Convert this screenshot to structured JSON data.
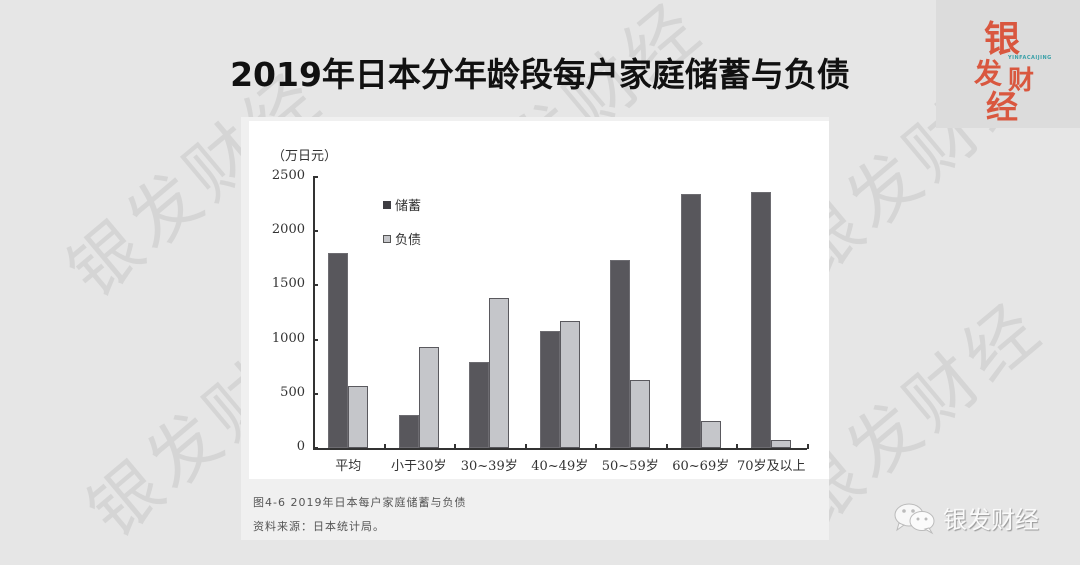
{
  "title": "2019年日本分年龄段每户家庭储蓄与负债",
  "watermark_text": "银发财经",
  "logo": {
    "chars": [
      "银",
      "发",
      "财",
      "经"
    ],
    "subtitle": "YINFACAIJING",
    "color": "#d9573f"
  },
  "footer_brand": "银发财经",
  "caption": {
    "figure": "图4-6 2019年日本每户家庭储蓄与负债",
    "source": "资料来源：日本统计局。"
  },
  "chart_data": {
    "type": "bar",
    "title": "2019年日本分年龄段每户家庭储蓄与负债",
    "xlabel": "",
    "ylabel": "（万日元）",
    "ylim": [
      0,
      2500
    ],
    "yticks": [
      0,
      500,
      1000,
      1500,
      2000,
      2500
    ],
    "grid": false,
    "legend_position": "upper-left-inside",
    "categories": [
      "平均",
      "小于30岁",
      "30~39岁",
      "40~49岁",
      "50~59岁",
      "60~69岁",
      "70岁及以上"
    ],
    "series": [
      {
        "name": "储蓄",
        "color": "#58575c",
        "values": [
          1800,
          300,
          790,
          1080,
          1730,
          2340,
          2360
        ]
      },
      {
        "name": "负债",
        "color": "#c5c6ca",
        "values": [
          570,
          930,
          1380,
          1170,
          630,
          250,
          75
        ]
      }
    ]
  }
}
